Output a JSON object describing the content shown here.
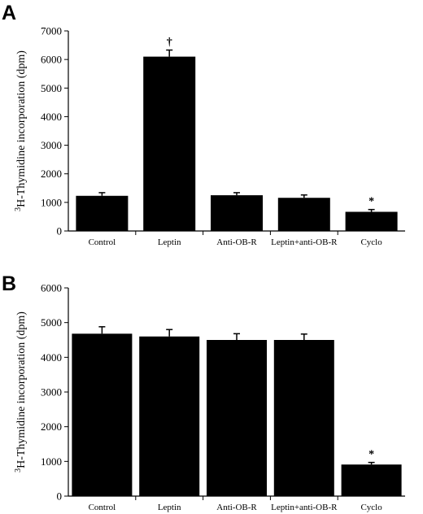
{
  "chart_data": [
    {
      "type": "bar",
      "panel_label": "A",
      "categories": [
        "Control",
        "Leptin",
        "Anti-OB-R",
        "Leptin+anti-OB-R",
        "Cyclo"
      ],
      "values": [
        1230,
        6100,
        1250,
        1160,
        670
      ],
      "errors": [
        110,
        230,
        90,
        100,
        80
      ],
      "annotations": [
        "",
        "†",
        "",
        "",
        "*"
      ],
      "ylabel_super": "3",
      "ylabel": "H-Thymidine incorporation (dpm)",
      "ylim": [
        0,
        7000
      ],
      "yticks": [
        0,
        1000,
        2000,
        3000,
        4000,
        5000,
        6000,
        7000
      ],
      "grid": false,
      "bar_color": "#000000"
    },
    {
      "type": "bar",
      "panel_label": "B",
      "categories": [
        "Control",
        "Leptin",
        "Anti-OB-R",
        "Leptin+anti-OB-R",
        "Cyclo"
      ],
      "values": [
        4680,
        4600,
        4500,
        4500,
        910
      ],
      "errors": [
        200,
        200,
        180,
        170,
        60
      ],
      "annotations": [
        "",
        "",
        "",
        "",
        "*"
      ],
      "ylabel_super": "3",
      "ylabel": "H-Thymidine incorporation (dpm)",
      "ylim": [
        0,
        6000
      ],
      "yticks": [
        0,
        1000,
        2000,
        3000,
        4000,
        5000,
        6000
      ],
      "grid": false,
      "bar_color": "#000000"
    }
  ]
}
